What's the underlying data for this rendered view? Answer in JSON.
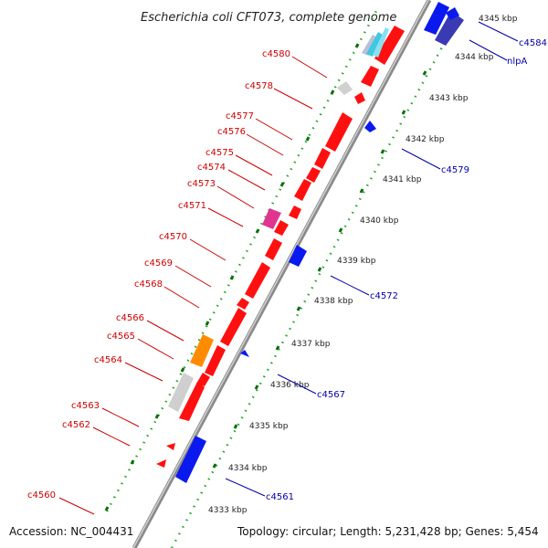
{
  "title": "Escherichia coli CFT073, complete genome",
  "footer": {
    "accession": "Accession: NC_004431",
    "summary": "Topology: circular; Length: 5,231,428 bp; Genes: 5,454"
  },
  "colors": {
    "reverse_label": "#cc0000",
    "forward_label": "#0000aa",
    "reverse_gene": "#ff1010",
    "forward_gene": "#0a1aee",
    "ruler_dots": "#1fa81f",
    "ruler_ticks": "#0c6e0c",
    "backbone": "#9a9a9a"
  },
  "kbp_ticks": [
    "4333 kbp",
    "4334 kbp",
    "4335 kbp",
    "4336 kbp",
    "4337 kbp",
    "4338 kbp",
    "4339 kbp",
    "4340 kbp",
    "4341 kbp",
    "4342 kbp",
    "4343 kbp",
    "4344 kbp",
    "4345 kbp"
  ],
  "reverse_labels": [
    "c4560",
    "c4562",
    "c4563",
    "c4564",
    "c4565",
    "c4566",
    "c4568",
    "c4569",
    "c4570",
    "c4571",
    "c4573",
    "c4574",
    "c4575",
    "c4576",
    "c4577",
    "c4578",
    "c4580"
  ],
  "forward_labels": [
    "c4561",
    "c4567",
    "c4572",
    "c4579",
    "nlpA",
    "c4584"
  ]
}
